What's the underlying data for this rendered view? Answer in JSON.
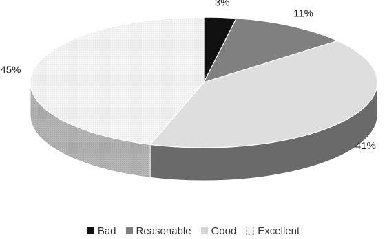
{
  "chart_data": {
    "type": "pie",
    "style": "3d",
    "categories": [
      "Bad",
      "Reasonable",
      "Good",
      "Excellent"
    ],
    "values": [
      3,
      11,
      41,
      45
    ],
    "labels": [
      "3%",
      "11%",
      "41%",
      "45%"
    ],
    "colors": [
      "#111111",
      "#7f7f7f",
      "#d9d9d9",
      "#f4f4f4"
    ],
    "legend_position": "bottom",
    "title": "",
    "start": "12 o'clock",
    "direction": "clockwise"
  }
}
